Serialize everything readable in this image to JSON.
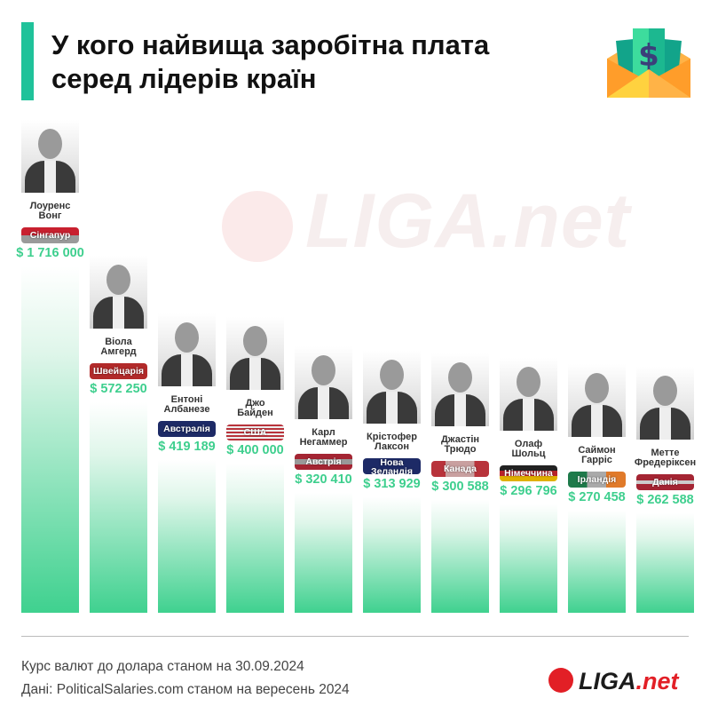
{
  "header": {
    "title": "У кого найвища заробітна плата серед лідерів країн",
    "icon": "envelope-money-icon",
    "accent_color": "#1fc29a"
  },
  "watermark": "LIGA.net",
  "chart_data": {
    "type": "bar",
    "title": "У кого найвища заробітна плата серед лідерів країн",
    "currency": "$",
    "bar_color": "#3fd18f",
    "categories": [
      "Лоуренс Вонг",
      "Віола Амгерд",
      "Ентоні Албанезе",
      "Джо Байден",
      "Карл Негаммер",
      "Крістофер Лаксон",
      "Джастін Трюдо",
      "Олаф Шольц",
      "Саймон Гарріс",
      "Метте Фредеріксен"
    ],
    "items": [
      {
        "name_line1": "Лоуренс",
        "name_line2": "Вонг",
        "country": "Сінгапур",
        "value": 1716000,
        "label": "$ 1 716 000",
        "flag": "linear-gradient(#c8202f 50%,#9a9a9a 50%)"
      },
      {
        "name_line1": "Віола",
        "name_line2": "Амгерд",
        "country": "Швейцарія",
        "value": 572250,
        "label": "$ 572 250",
        "flag": "#b22a2a"
      },
      {
        "name_line1": "Ентоні",
        "name_line2": "Албанезе",
        "country": "Австралія",
        "value": 419189,
        "label": "$ 419 189",
        "flag": "#1d2a66"
      },
      {
        "name_line1": "Джо",
        "name_line2": "Байден",
        "country": "США",
        "value": 400000,
        "label": "$ 400 000",
        "flag": "repeating-linear-gradient(#b8333b 0 2px,#eee 2px 4px)"
      },
      {
        "name_line1": "Карл",
        "name_line2": "Негаммер",
        "country": "Австрія",
        "value": 320410,
        "label": "$ 320 410",
        "flag": "linear-gradient(#a42533 33%,#999 33% 66%,#a42533 66%)"
      },
      {
        "name_line1": "Крістофер",
        "name_line2": "Лаксон",
        "country": "Нова Зеландія",
        "value": 313929,
        "label": "$ 313 929",
        "flag": "#1d2a66"
      },
      {
        "name_line1": "Джастін",
        "name_line2": "Трюдо",
        "country": "Канада",
        "value": 300588,
        "label": "$ 300 588",
        "flag": "linear-gradient(90deg,#b8333b 25%,#c9a0a0 25% 75%,#b8333b 75%)"
      },
      {
        "name_line1": "Олаф",
        "name_line2": "Шольц",
        "country": "Німеччина",
        "value": 296796,
        "label": "$ 296 796",
        "flag": "linear-gradient(#222 33%,#b8232b 33% 66%,#e0b000 66%)"
      },
      {
        "name_line1": "Саймон",
        "name_line2": "Гарріс",
        "country": "Ірландія",
        "value": 270458,
        "label": "$ 270 458",
        "flag": "linear-gradient(90deg,#1e7a4a 33%,#aaa 33% 66%,#e07a2a 66%)"
      },
      {
        "name_line1": "Метте",
        "name_line2": "Фредеріксен",
        "country": "Данія",
        "value": 262588,
        "label": "$ 262 588",
        "flag": "linear-gradient(#a42533 40%,#ccc 40% 60%,#a42533 60%)"
      }
    ]
  },
  "footer": {
    "note1": "Курс валют до долара станом на 30.09.2024",
    "note2": "Дані: PoliticalSalaries.com станом на вересень 2024",
    "logo_main": "LIGA",
    "logo_suffix": ".net"
  }
}
